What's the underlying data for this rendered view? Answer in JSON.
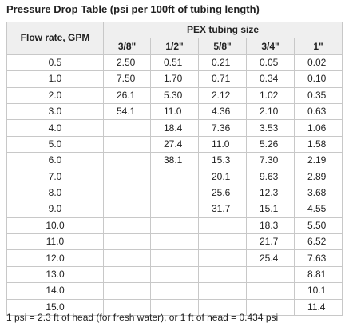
{
  "title": "Pressure Drop Table (psi per 100ft of tubing length)",
  "table": {
    "flow_header": "Flow rate, GPM",
    "group_header": "PEX tubing size",
    "sizes": [
      "3/8\"",
      "1/2\"",
      "5/8\"",
      "3/4\"",
      "1\""
    ],
    "rows": [
      {
        "flow": "0.5",
        "v": [
          "2.50",
          "0.51",
          "0.21",
          "0.05",
          "0.02"
        ]
      },
      {
        "flow": "1.0",
        "v": [
          "7.50",
          "1.70",
          "0.71",
          "0.34",
          "0.10"
        ]
      },
      {
        "flow": "2.0",
        "v": [
          "26.1",
          "5.30",
          "2.12",
          "1.02",
          "0.35"
        ]
      },
      {
        "flow": "3.0",
        "v": [
          "54.1",
          "11.0",
          "4.36",
          "2.10",
          "0.63"
        ]
      },
      {
        "flow": "4.0",
        "v": [
          "",
          "18.4",
          "7.36",
          "3.53",
          "1.06"
        ]
      },
      {
        "flow": "5.0",
        "v": [
          "",
          "27.4",
          "11.0",
          "5.26",
          "1.58"
        ]
      },
      {
        "flow": "6.0",
        "v": [
          "",
          "38.1",
          "15.3",
          "7.30",
          "2.19"
        ]
      },
      {
        "flow": "7.0",
        "v": [
          "",
          "",
          "20.1",
          "9.63",
          "2.89"
        ]
      },
      {
        "flow": "8.0",
        "v": [
          "",
          "",
          "25.6",
          "12.3",
          "3.68"
        ]
      },
      {
        "flow": "9.0",
        "v": [
          "",
          "",
          "31.7",
          "15.1",
          "4.55"
        ]
      },
      {
        "flow": "10.0",
        "v": [
          "",
          "",
          "",
          "18.3",
          "5.50"
        ]
      },
      {
        "flow": "11.0",
        "v": [
          "",
          "",
          "",
          "21.7",
          "6.52"
        ]
      },
      {
        "flow": "12.0",
        "v": [
          "",
          "",
          "",
          "25.4",
          "7.63"
        ]
      },
      {
        "flow": "13.0",
        "v": [
          "",
          "",
          "",
          "",
          "8.81"
        ]
      },
      {
        "flow": "14.0",
        "v": [
          "",
          "",
          "",
          "",
          "10.1"
        ]
      },
      {
        "flow": "15.0",
        "v": [
          "",
          "",
          "",
          "",
          "11.4"
        ]
      }
    ]
  },
  "note": "1 psi = 2.3 ft of head (for fresh water), or 1 ft of head = 0.434 psi"
}
